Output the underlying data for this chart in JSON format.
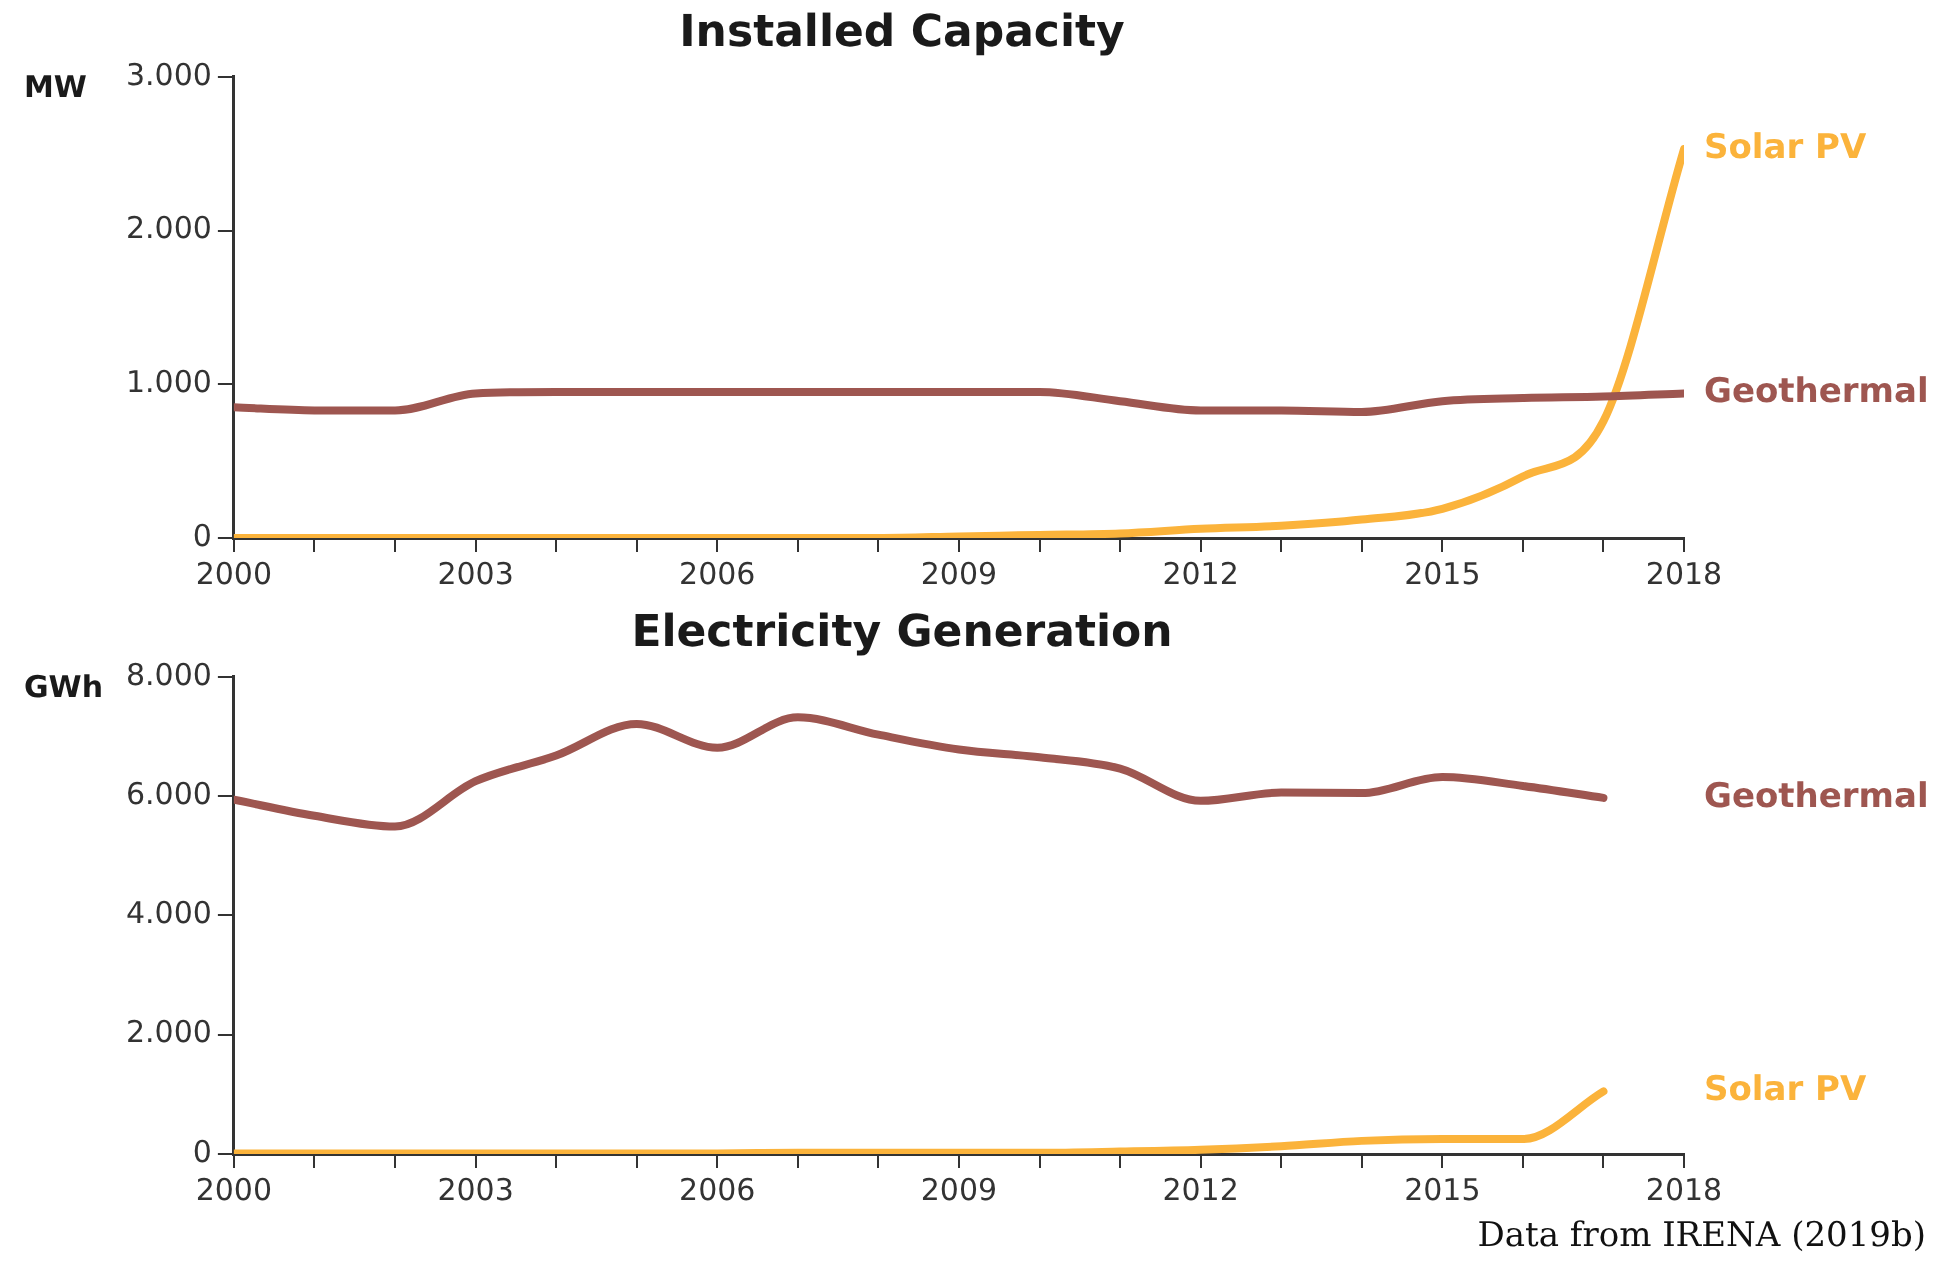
{
  "chart_data": [
    {
      "type": "line",
      "title": "Installed Capacity",
      "ylabel": "MW",
      "x": [
        2000,
        2001,
        2002,
        2003,
        2004,
        2005,
        2006,
        2007,
        2008,
        2009,
        2010,
        2011,
        2012,
        2013,
        2014,
        2015,
        2016,
        2017,
        2018
      ],
      "series": [
        {
          "name": "Geothermal",
          "color": "#9e5650",
          "values": [
            850,
            830,
            830,
            940,
            950,
            950,
            950,
            950,
            950,
            950,
            950,
            890,
            830,
            830,
            820,
            890,
            910,
            920,
            940
          ]
        },
        {
          "name": "Solar PV",
          "color": "#fbb33b",
          "values": [
            0,
            0,
            0,
            0,
            0,
            0,
            0,
            0,
            0,
            10,
            20,
            30,
            60,
            80,
            120,
            190,
            400,
            760,
            2530
          ]
        }
      ],
      "xlim": [
        2000,
        2018
      ],
      "xticks": [
        2000,
        {
          "value": 2001,
          "label": null
        },
        {
          "value": 2002,
          "label": null
        },
        2003,
        {
          "value": 2004,
          "label": null
        },
        {
          "value": 2005,
          "label": null
        },
        2006,
        {
          "value": 2007,
          "label": null
        },
        {
          "value": 2008,
          "label": null
        },
        2009,
        {
          "value": 2010,
          "label": null
        },
        {
          "value": 2011,
          "label": null
        },
        2012,
        {
          "value": 2013,
          "label": null
        },
        {
          "value": 2014,
          "label": null
        },
        2015,
        {
          "value": 2016,
          "label": null
        },
        {
          "value": 2017,
          "label": null
        },
        2018
      ],
      "ylim": [
        0,
        3000
      ],
      "yticks": [
        {
          "value": 0,
          "label": "0"
        },
        {
          "value": 1000,
          "label": "1.000"
        },
        {
          "value": 2000,
          "label": "2.000"
        },
        {
          "value": 3000,
          "label": "3.000"
        }
      ],
      "grid": false,
      "legend": false,
      "marker": "none",
      "line_style": "solid"
    },
    {
      "type": "line",
      "title": "Electricity Generation",
      "ylabel": "GWh",
      "x": [
        2000,
        2001,
        2002,
        2003,
        2004,
        2005,
        2006,
        2007,
        2008,
        2009,
        2010,
        2011,
        2012,
        2013,
        2014,
        2015,
        2016,
        2017
      ],
      "series": [
        {
          "name": "Geothermal",
          "color": "#9e5650",
          "values": [
            5940,
            5670,
            5490,
            6250,
            6680,
            7210,
            6810,
            7320,
            7030,
            6780,
            6650,
            6460,
            5920,
            6060,
            6050,
            6320,
            6170,
            5970
          ]
        },
        {
          "name": "Solar PV",
          "color": "#fbb33b",
          "values": [
            10,
            10,
            10,
            10,
            10,
            10,
            10,
            20,
            20,
            20,
            20,
            40,
            70,
            130,
            220,
            250,
            250,
            1050
          ]
        }
      ],
      "xlim": [
        2000,
        2018
      ],
      "xticks": [
        2000,
        {
          "value": 2001,
          "label": null
        },
        {
          "value": 2002,
          "label": null
        },
        2003,
        {
          "value": 2004,
          "label": null
        },
        {
          "value": 2005,
          "label": null
        },
        2006,
        {
          "value": 2007,
          "label": null
        },
        {
          "value": 2008,
          "label": null
        },
        2009,
        {
          "value": 2010,
          "label": null
        },
        {
          "value": 2011,
          "label": null
        },
        2012,
        {
          "value": 2013,
          "label": null
        },
        {
          "value": 2014,
          "label": null
        },
        2015,
        {
          "value": 2016,
          "label": null
        },
        {
          "value": 2017,
          "label": null
        },
        2018
      ],
      "ylim": [
        0,
        8000
      ],
      "yticks": [
        {
          "value": 0,
          "label": "0"
        },
        {
          "value": 2000,
          "label": "2.000"
        },
        {
          "value": 4000,
          "label": "4.000"
        },
        {
          "value": 6000,
          "label": "6.000"
        },
        {
          "value": 8000,
          "label": "8.000"
        }
      ],
      "grid": false,
      "legend": false,
      "marker": "none",
      "line_style": "solid",
      "annotations": [
        "Data from IRENA (2019b)"
      ]
    }
  ]
}
